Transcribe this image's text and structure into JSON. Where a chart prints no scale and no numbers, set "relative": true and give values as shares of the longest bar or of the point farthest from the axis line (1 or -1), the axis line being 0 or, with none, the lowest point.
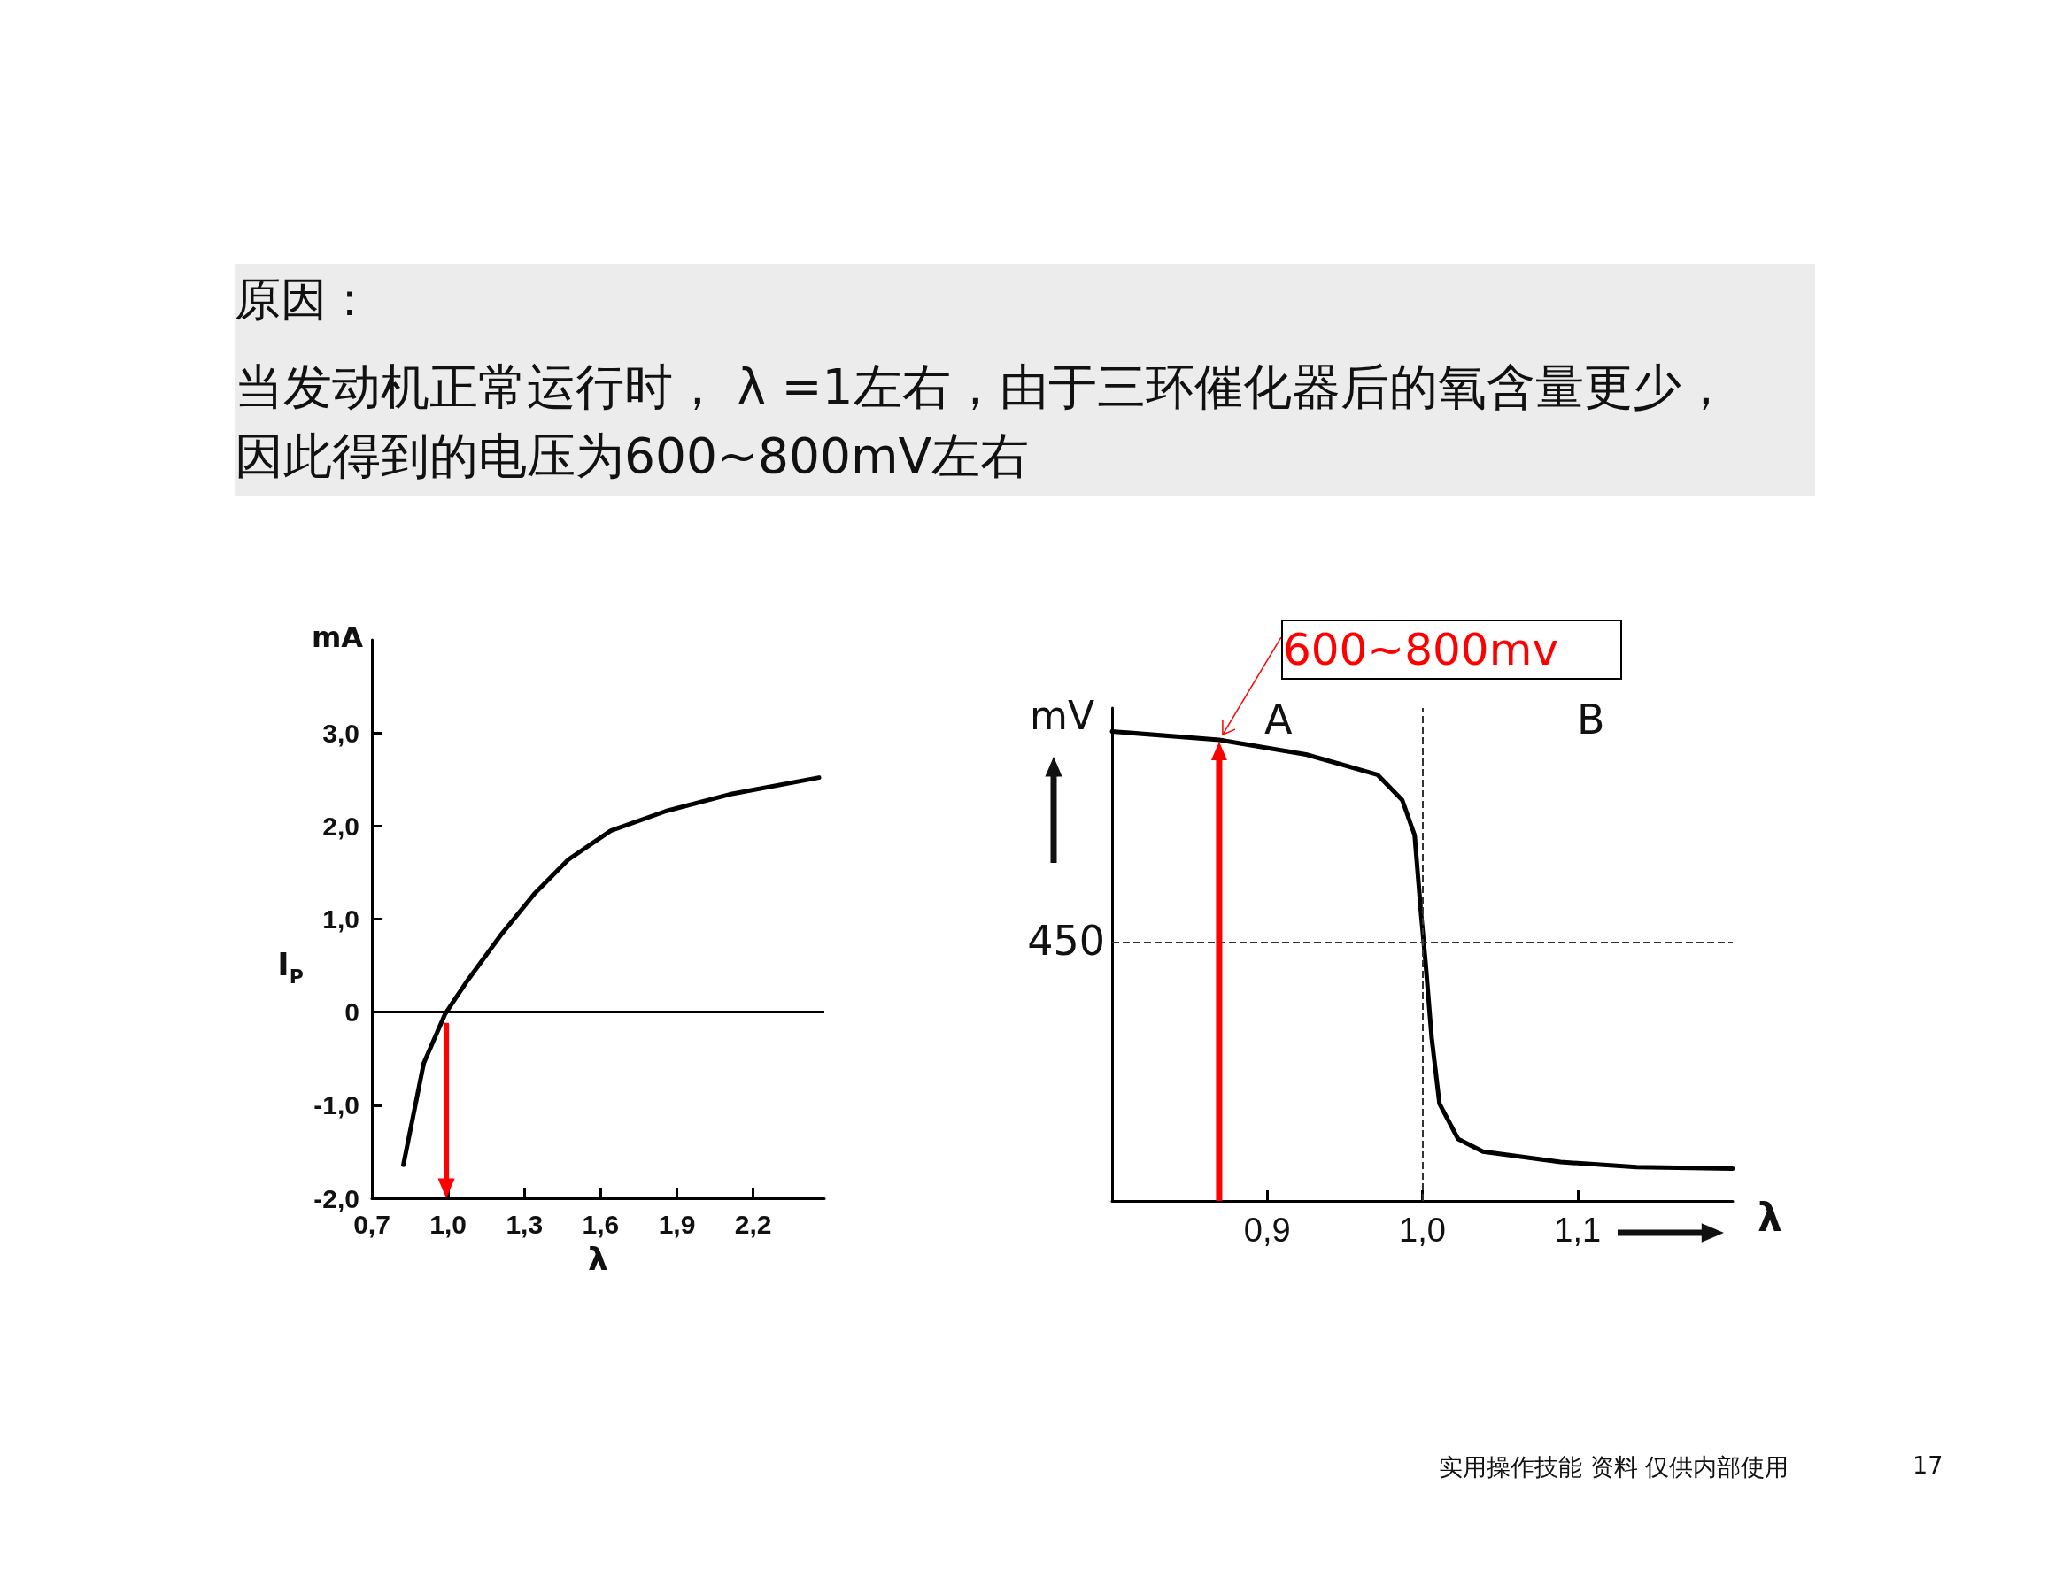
{
  "chart_data": [
    {
      "type": "other",
      "title": "原因：",
      "subtitle": "当发动机正常运行时， λ =1左右，由于三环催化器后的氧含量更少，因此得到的电压为600~800mV左右",
      "annotations": [
        "实用操作技能 资料 仅供内部使用",
        "17"
      ]
    },
    {
      "type": "line",
      "xlabel": "λ",
      "ylabel": "I$_{P}$",
      "annotations": [
        "mA"
      ],
      "xlim": [
        0.7,
        2.48
      ],
      "ylim": [
        -2,
        4
      ],
      "xticks": [
        {
          "value": 0.7,
          "label": "0,7"
        },
        {
          "value": 1.0,
          "label": "1,0"
        },
        {
          "value": 1.3,
          "label": "1,3"
        },
        {
          "value": 1.6,
          "label": "1,6"
        },
        {
          "value": 1.9,
          "label": "1,9"
        },
        {
          "value": 2.2,
          "label": "2,2"
        }
      ],
      "yticks": [
        {
          "value": -2,
          "label": "-2,0"
        },
        {
          "value": -1,
          "label": "-1,0"
        },
        0,
        {
          "value": 1,
          "label": "1,0"
        },
        {
          "value": 2,
          "label": "2,0"
        },
        {
          "value": 3,
          "label": "3,0"
        }
      ],
      "series": [
        {
          "color": "#000000",
          "x": [
            0.824,
            0.904,
            0.988,
            1.071,
            1.205,
            1.339,
            1.473,
            1.64,
            1.857,
            2.108,
            2.459
          ],
          "values": [
            -1.64,
            -0.55,
            -0.02,
            0.32,
            0.82,
            1.27,
            1.64,
            1.95,
            2.16,
            2.34,
            2.52
          ]
        }
      ],
      "ref_lines": [
        {
          "axis": "y",
          "value": 0,
          "color": "#000000",
          "line_style": "solid"
        }
      ],
      "grid": false,
      "marker": "none",
      "line_style": "solid"
    },
    {
      "type": "line",
      "relative": true,
      "xlabel": "λ",
      "ylabel": "mV",
      "annotations": [
        {
          "text": "600~800mv",
          "x": 0.869,
          "y": 0.982
        },
        "A",
        "B",
        "450"
      ],
      "xlim": [
        0.8,
        1.2
      ],
      "xticks": [
        {
          "value": 0.9,
          "label": "0,9"
        },
        {
          "value": 1.0,
          "label": "1,0"
        },
        {
          "value": 1.1,
          "label": "1,1"
        }
      ],
      "series": [
        {
          "color": "#000000",
          "x": [
            0.8,
            0.869,
            0.925,
            0.971,
            0.987,
            0.995,
            0.999,
            1.002,
            1.006,
            1.011,
            1.023,
            1.039,
            1.089,
            1.138,
            1.2
          ],
          "values": [
            1.0,
            0.982,
            0.951,
            0.908,
            0.854,
            0.779,
            0.617,
            0.509,
            0.347,
            0.207,
            0.132,
            0.105,
            0.083,
            0.072,
            0.069
          ]
        }
      ],
      "ref_lines": [
        {
          "axis": "y",
          "value": 0.547,
          "color": "#333333",
          "line_style": "dashed"
        },
        {
          "axis": "x",
          "value": 1.0,
          "color": "#333333",
          "line_style": "dashed"
        }
      ],
      "grid": false,
      "marker": "none",
      "line_style": "solid"
    }
  ]
}
